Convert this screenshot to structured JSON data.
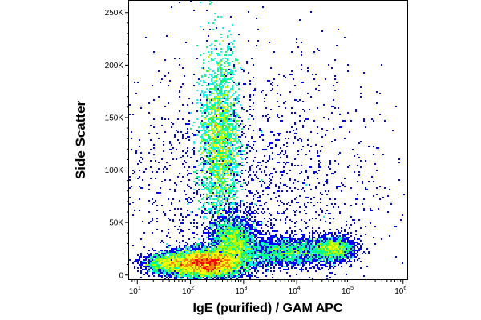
{
  "chart_data": {
    "type": "scatter",
    "style": "flow-cytometry pseudocolor density dot plot",
    "xlabel": "IgE (purified) / GAM APC",
    "ylabel": "Side Scatter",
    "x_scale": "log",
    "xlim": [
      7,
      1200000
    ],
    "ylim": [
      -4000,
      262000
    ],
    "x_ticks": [
      {
        "value": 10,
        "base": "10",
        "exp": "1"
      },
      {
        "value": 100,
        "base": "10",
        "exp": "2"
      },
      {
        "value": 1000,
        "base": "10",
        "exp": "3"
      },
      {
        "value": 10000,
        "base": "10",
        "exp": "4"
      },
      {
        "value": 100000,
        "base": "10",
        "exp": "5"
      },
      {
        "value": 1000000,
        "base": "10",
        "exp": "6"
      }
    ],
    "y_ticks": [
      {
        "value": 0,
        "label": "0"
      },
      {
        "value": 50000,
        "label": "50K"
      },
      {
        "value": 100000,
        "label": "100K"
      },
      {
        "value": 150000,
        "label": "150K"
      },
      {
        "value": 200000,
        "label": "200K"
      },
      {
        "value": 250000,
        "label": "250K"
      }
    ],
    "density_colors": [
      "#0000ff",
      "#00aaff",
      "#00ffff",
      "#00ff80",
      "#aaff00",
      "#ffff00",
      "#ff8000",
      "#ff0000"
    ],
    "grid": false,
    "legend": "none",
    "populations": [
      {
        "x_center": 200,
        "y_center": 11000,
        "x_spread_decades": 0.35,
        "y_spread": 7000,
        "relative_count": 0.34
      },
      {
        "x_center": 40,
        "y_center": 11000,
        "x_spread_decades": 0.25,
        "y_spread": 4500,
        "relative_count": 0.06
      },
      {
        "x_center": 360,
        "y_center": 125000,
        "x_spread_decades": 0.18,
        "y_spread": 38000,
        "relative_count": 0.27
      },
      {
        "x_center": 650,
        "y_center": 32000,
        "x_spread_decades": 0.2,
        "y_spread": 12000,
        "relative_count": 0.1
      },
      {
        "x_center": 6000,
        "y_center": 22000,
        "x_spread_decades": 0.45,
        "y_spread": 7000,
        "relative_count": 0.09
      },
      {
        "x_center": 50000,
        "y_center": 25000,
        "x_spread_decades": 0.2,
        "y_spread": 6000,
        "relative_count": 0.06
      },
      {
        "x_center": 1000,
        "y_center": 80000,
        "x_spread_decades": 1.3,
        "y_spread": 60000,
        "relative_count": 0.08
      }
    ]
  }
}
